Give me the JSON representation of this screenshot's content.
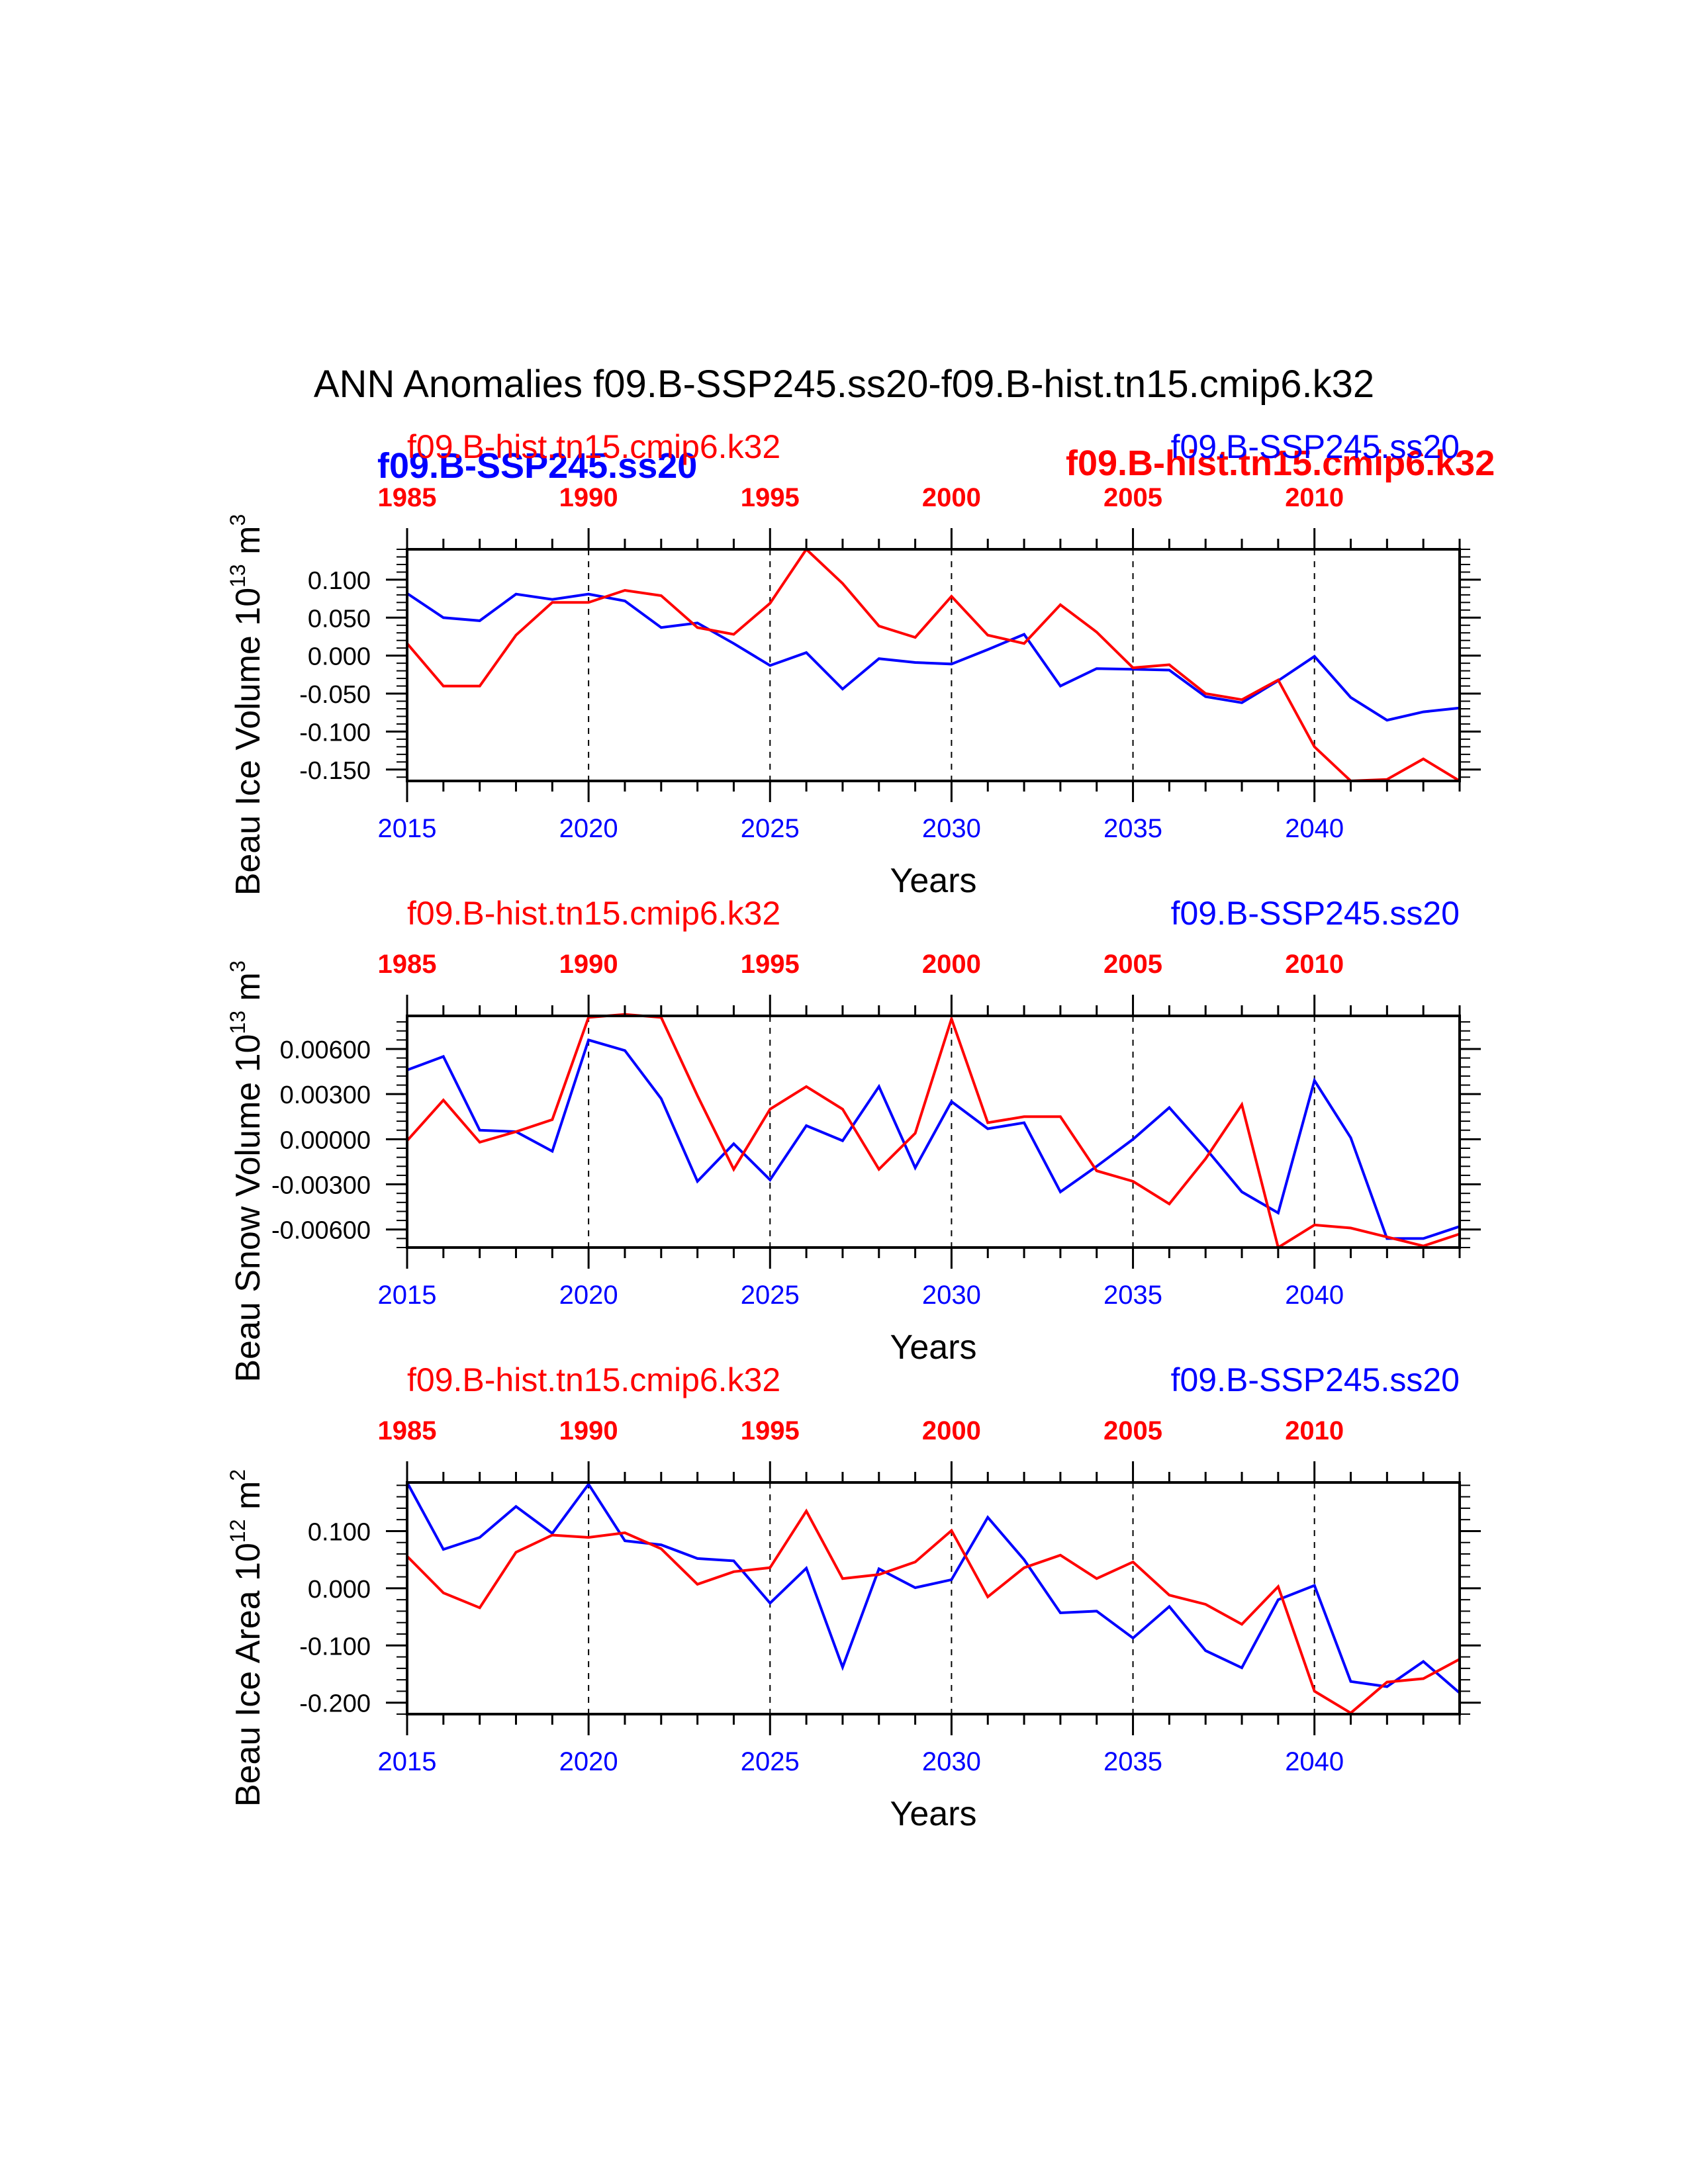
{
  "page": {
    "title": "ANN Anomalies f09.B-SSP245.ss20-f09.B-hist.tn15.cmip6.k32",
    "overlay_labels": {
      "left_blue": "f09.B-SSP245.ss20",
      "right_red": "f09.B-hist.tn15.cmip6.k32"
    }
  },
  "colors": {
    "ssp": "#0000ff",
    "hist": "#ff0000",
    "axis": "#000000"
  },
  "chart_data": [
    {
      "type": "line",
      "ylabel": "Beau Ice Volume 10",
      "ylabel_sup": "13",
      "ylabel_unit": " m",
      "ylabel_unit_sup": "3",
      "xlabel": "Years",
      "top_left_label": "f09.B-hist.tn15.cmip6.k32",
      "top_right_label": "f09.B-SSP245.ss20",
      "x": [
        2015,
        2016,
        2017,
        2018,
        2019,
        2020,
        2021,
        2022,
        2023,
        2024,
        2025,
        2026,
        2027,
        2028,
        2029,
        2030,
        2031,
        2032,
        2033,
        2034,
        2035,
        2036,
        2037,
        2038,
        2039,
        2040,
        2041,
        2042,
        2043,
        2044
      ],
      "xlim": [
        2015,
        2044
      ],
      "ylim": [
        -0.165,
        0.14
      ],
      "yticks": [
        -0.15,
        -0.1,
        -0.05,
        0.0,
        0.05,
        0.1
      ],
      "ytick_labels": [
        "-0.150",
        "-0.100",
        "-0.050",
        "0.000",
        "0.050",
        "0.100"
      ],
      "xticks_bottom": [
        "2015",
        "2020",
        "2025",
        "2030",
        "2035",
        "2040"
      ],
      "xticks_top": [
        "1985",
        "1990",
        "1995",
        "2000",
        "2005",
        "2010"
      ],
      "series": [
        {
          "name": "f09.B-SSP245.ss20",
          "color": "#0000ff",
          "values": [
            0.082,
            0.05,
            0.046,
            0.081,
            0.074,
            0.081,
            0.072,
            0.037,
            0.043,
            0.016,
            -0.013,
            0.004,
            -0.044,
            -0.004,
            -0.009,
            -0.011,
            0.008,
            0.028,
            -0.04,
            -0.017,
            -0.018,
            -0.019,
            -0.054,
            -0.062,
            -0.033,
            -0.001,
            -0.055,
            -0.085,
            -0.074,
            -0.069
          ]
        },
        {
          "name": "f09.B-hist.tn15.cmip6.k32",
          "color": "#ff0000",
          "values": [
            0.016,
            -0.04,
            -0.04,
            0.027,
            0.07,
            0.07,
            0.086,
            0.079,
            0.037,
            0.028,
            0.069,
            0.14,
            0.095,
            0.039,
            0.024,
            0.078,
            0.027,
            0.016,
            0.067,
            0.031,
            -0.016,
            -0.012,
            -0.05,
            -0.058,
            -0.032,
            -0.12,
            -0.165,
            -0.163,
            -0.136,
            -0.165
          ]
        }
      ]
    },
    {
      "type": "line",
      "ylabel": "Beau Snow Volume 10",
      "ylabel_sup": "13",
      "ylabel_unit": " m",
      "ylabel_unit_sup": "3",
      "xlabel": "Years",
      "top_left_label": "f09.B-hist.tn15.cmip6.k32",
      "top_right_label": "f09.B-SSP245.ss20",
      "x": [
        2015,
        2016,
        2017,
        2018,
        2019,
        2020,
        2021,
        2022,
        2023,
        2024,
        2025,
        2026,
        2027,
        2028,
        2029,
        2030,
        2031,
        2032,
        2033,
        2034,
        2035,
        2036,
        2037,
        2038,
        2039,
        2040,
        2041,
        2042,
        2043,
        2044
      ],
      "xlim": [
        2015,
        2044
      ],
      "ylim": [
        -0.0072,
        0.0082
      ],
      "yticks": [
        -0.006,
        -0.003,
        0.0,
        0.003,
        0.006
      ],
      "ytick_labels": [
        "-0.00600",
        "-0.00300",
        "0.00000",
        "0.00300",
        "0.00600"
      ],
      "xticks_bottom": [
        "2015",
        "2020",
        "2025",
        "2030",
        "2035",
        "2040"
      ],
      "xticks_top": [
        "1985",
        "1990",
        "1995",
        "2000",
        "2005",
        "2010"
      ],
      "series": [
        {
          "name": "f09.B-SSP245.ss20",
          "color": "#0000ff",
          "values": [
            0.0046,
            0.0055,
            0.0006,
            0.0005,
            -0.0008,
            0.0066,
            0.0059,
            0.0027,
            -0.0028,
            -0.0003,
            -0.0027,
            0.0009,
            -0.0001,
            0.0035,
            -0.0019,
            0.0025,
            0.0007,
            0.0011,
            -0.0035,
            -0.0018,
            0.0,
            0.0021,
            -0.0006,
            -0.0035,
            -0.0049,
            0.0039,
            0.0001,
            -0.0066,
            -0.0066,
            -0.0058
          ]
        },
        {
          "name": "f09.B-hist.tn15.cmip6.k32",
          "color": "#ff0000",
          "values": [
            -0.0001,
            0.0026,
            -0.0002,
            0.0005,
            0.0013,
            0.0081,
            0.0083,
            0.0081,
            0.0029,
            -0.002,
            0.002,
            0.0035,
            0.002,
            -0.002,
            0.0004,
            0.008,
            0.0011,
            0.0015,
            0.0015,
            -0.0021,
            -0.0028,
            -0.0043,
            -0.0013,
            0.0023,
            -0.0072,
            -0.0057,
            -0.0059,
            -0.0065,
            -0.0071,
            -0.0063
          ]
        }
      ]
    },
    {
      "type": "line",
      "ylabel": "Beau Ice Area 10",
      "ylabel_sup": "12",
      "ylabel_unit": " m",
      "ylabel_unit_sup": "2",
      "xlabel": "Years",
      "top_left_label": "f09.B-hist.tn15.cmip6.k32",
      "top_right_label": "f09.B-SSP245.ss20",
      "x": [
        2015,
        2016,
        2017,
        2018,
        2019,
        2020,
        2021,
        2022,
        2023,
        2024,
        2025,
        2026,
        2027,
        2028,
        2029,
        2030,
        2031,
        2032,
        2033,
        2034,
        2035,
        2036,
        2037,
        2038,
        2039,
        2040,
        2041,
        2042,
        2043,
        2044
      ],
      "xlim": [
        2015,
        2044
      ],
      "ylim": [
        -0.22,
        0.185
      ],
      "yticks": [
        -0.2,
        -0.1,
        0.0,
        0.1
      ],
      "ytick_labels": [
        "-0.200",
        "-0.100",
        "0.000",
        "0.100"
      ],
      "xticks_bottom": [
        "2015",
        "2020",
        "2025",
        "2030",
        "2035",
        "2040"
      ],
      "xticks_top": [
        "1985",
        "1990",
        "1995",
        "2000",
        "2005",
        "2010"
      ],
      "series": [
        {
          "name": "f09.B-SSP245.ss20",
          "color": "#0000ff",
          "values": [
            0.185,
            0.068,
            0.089,
            0.143,
            0.096,
            0.182,
            0.083,
            0.076,
            0.052,
            0.048,
            -0.026,
            0.035,
            -0.138,
            0.034,
            0.001,
            0.015,
            0.124,
            0.05,
            -0.043,
            -0.04,
            -0.087,
            -0.032,
            -0.109,
            -0.139,
            -0.02,
            0.005,
            -0.163,
            -0.172,
            -0.128,
            -0.183
          ]
        },
        {
          "name": "f09.B-hist.tn15.cmip6.k32",
          "color": "#ff0000",
          "values": [
            0.056,
            -0.008,
            -0.034,
            0.063,
            0.093,
            0.089,
            0.097,
            0.069,
            0.007,
            0.029,
            0.036,
            0.135,
            0.017,
            0.024,
            0.046,
            0.101,
            -0.015,
            0.036,
            0.058,
            0.017,
            0.046,
            -0.012,
            -0.028,
            -0.063,
            0.003,
            -0.18,
            -0.218,
            -0.164,
            -0.158,
            -0.124
          ]
        }
      ]
    }
  ]
}
